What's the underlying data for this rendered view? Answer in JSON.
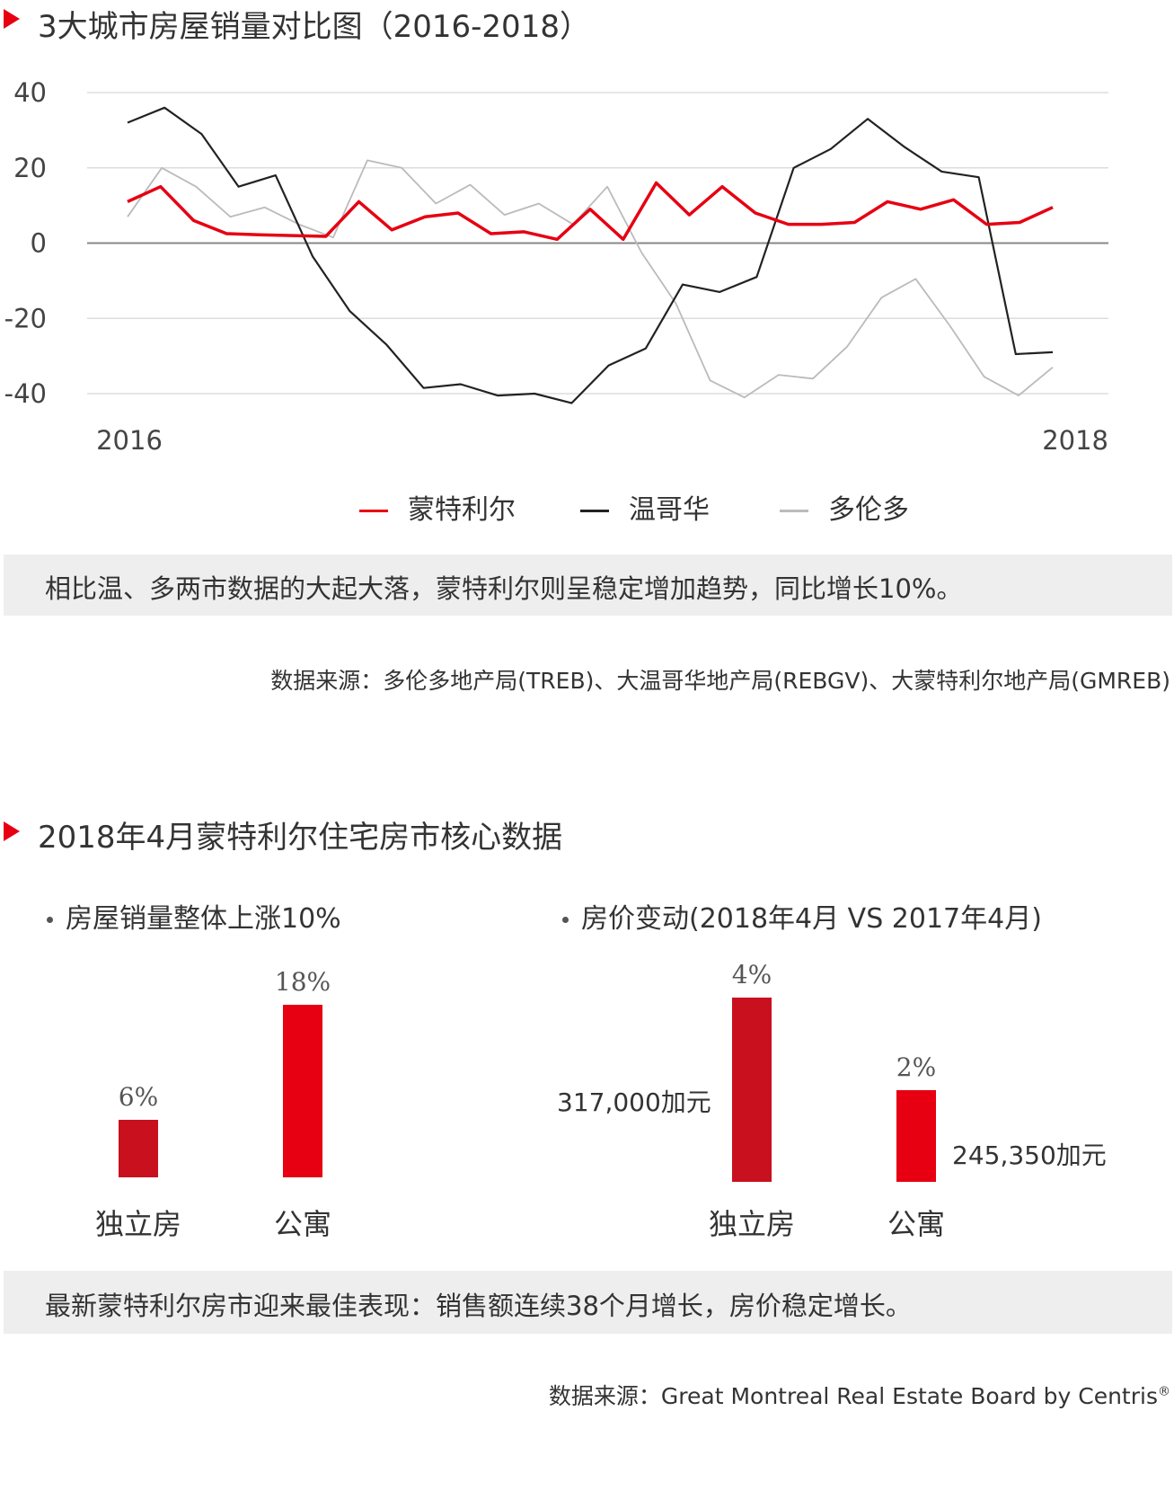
{
  "section1": {
    "title": "3大城市房屋销量对比图（2016-2018）",
    "note": "相比温、多两市数据的大起大落，蒙特利尔则呈稳定增加趋势，同比增长10%。",
    "source": "数据来源：多伦多地产局(TREB)、大温哥华地产局(REBGV)、大蒙特利尔地产局(GMREB)"
  },
  "section2": {
    "title": "2018年4月蒙特利尔住宅房市核心数据",
    "left_heading": "房屋销量整体上涨10%",
    "right_heading": "房价变动(2018年4月 VS 2017年4月)",
    "note": "最新蒙特利尔房市迎来最佳表现：销售额连续38个月增长，房价稳定增长。",
    "source_prefix": "数据来源：",
    "source_name": "Great Montreal Real Estate Board by Centris",
    "source_mark": "®"
  },
  "chart_data": [
    {
      "type": "line",
      "title": "3大城市房屋销量对比图（2016-2018）",
      "ylim": [
        -40,
        40
      ],
      "yticks": [
        "40",
        "20",
        "0",
        "-20",
        "-40"
      ],
      "xticks": [
        "2016",
        "2018"
      ],
      "legend_position": "bottom-center",
      "colors": {
        "蒙特利尔": "#e60012",
        "温哥华": "#222222",
        "多伦多": "#bbbbbb"
      },
      "series": [
        {
          "name": "蒙特利尔",
          "values": [
            11,
            15,
            6,
            2.5,
            2.2,
            2,
            1.8,
            11,
            3.5,
            7,
            8,
            2.5,
            3,
            1,
            9,
            1,
            16,
            7.5,
            15,
            8,
            5,
            5,
            5.5,
            11,
            9,
            11.5,
            5,
            5.5,
            9.5
          ]
        },
        {
          "name": "温哥华",
          "values": [
            32,
            36,
            29,
            15,
            18,
            -3.5,
            -18,
            -27,
            -38.5,
            -37.5,
            -40.5,
            -40,
            -42.5,
            -32.5,
            -28,
            -11,
            -13,
            -9,
            20,
            25,
            33,
            25.5,
            19,
            17.5,
            -29.5,
            -29
          ]
        },
        {
          "name": "多伦多",
          "values": [
            7,
            20,
            15,
            7,
            9.5,
            5,
            1.5,
            22,
            20,
            10.5,
            15.5,
            7.5,
            10.5,
            5,
            15,
            -2.5,
            -16,
            -36.5,
            -41,
            -35,
            -36,
            -27.5,
            -14.5,
            -9.5,
            -22,
            -35.5,
            -40.5,
            -33
          ]
        }
      ]
    },
    {
      "type": "bar",
      "title": "房屋销量整体上涨10%",
      "categories": [
        "独立房",
        "公寓"
      ],
      "values": [
        6,
        18
      ],
      "labels": [
        "6%",
        "18%"
      ],
      "colors": [
        "#c8101e",
        "#e60012"
      ]
    },
    {
      "type": "bar",
      "title": "房价变动(2018年4月 VS 2017年4月)",
      "categories": [
        "独立房",
        "公寓"
      ],
      "values": [
        4,
        2
      ],
      "labels": [
        "4%",
        "2%"
      ],
      "prices": [
        "317,000加元",
        "245,350加元"
      ],
      "colors": [
        "#c8101e",
        "#e60012"
      ]
    }
  ]
}
